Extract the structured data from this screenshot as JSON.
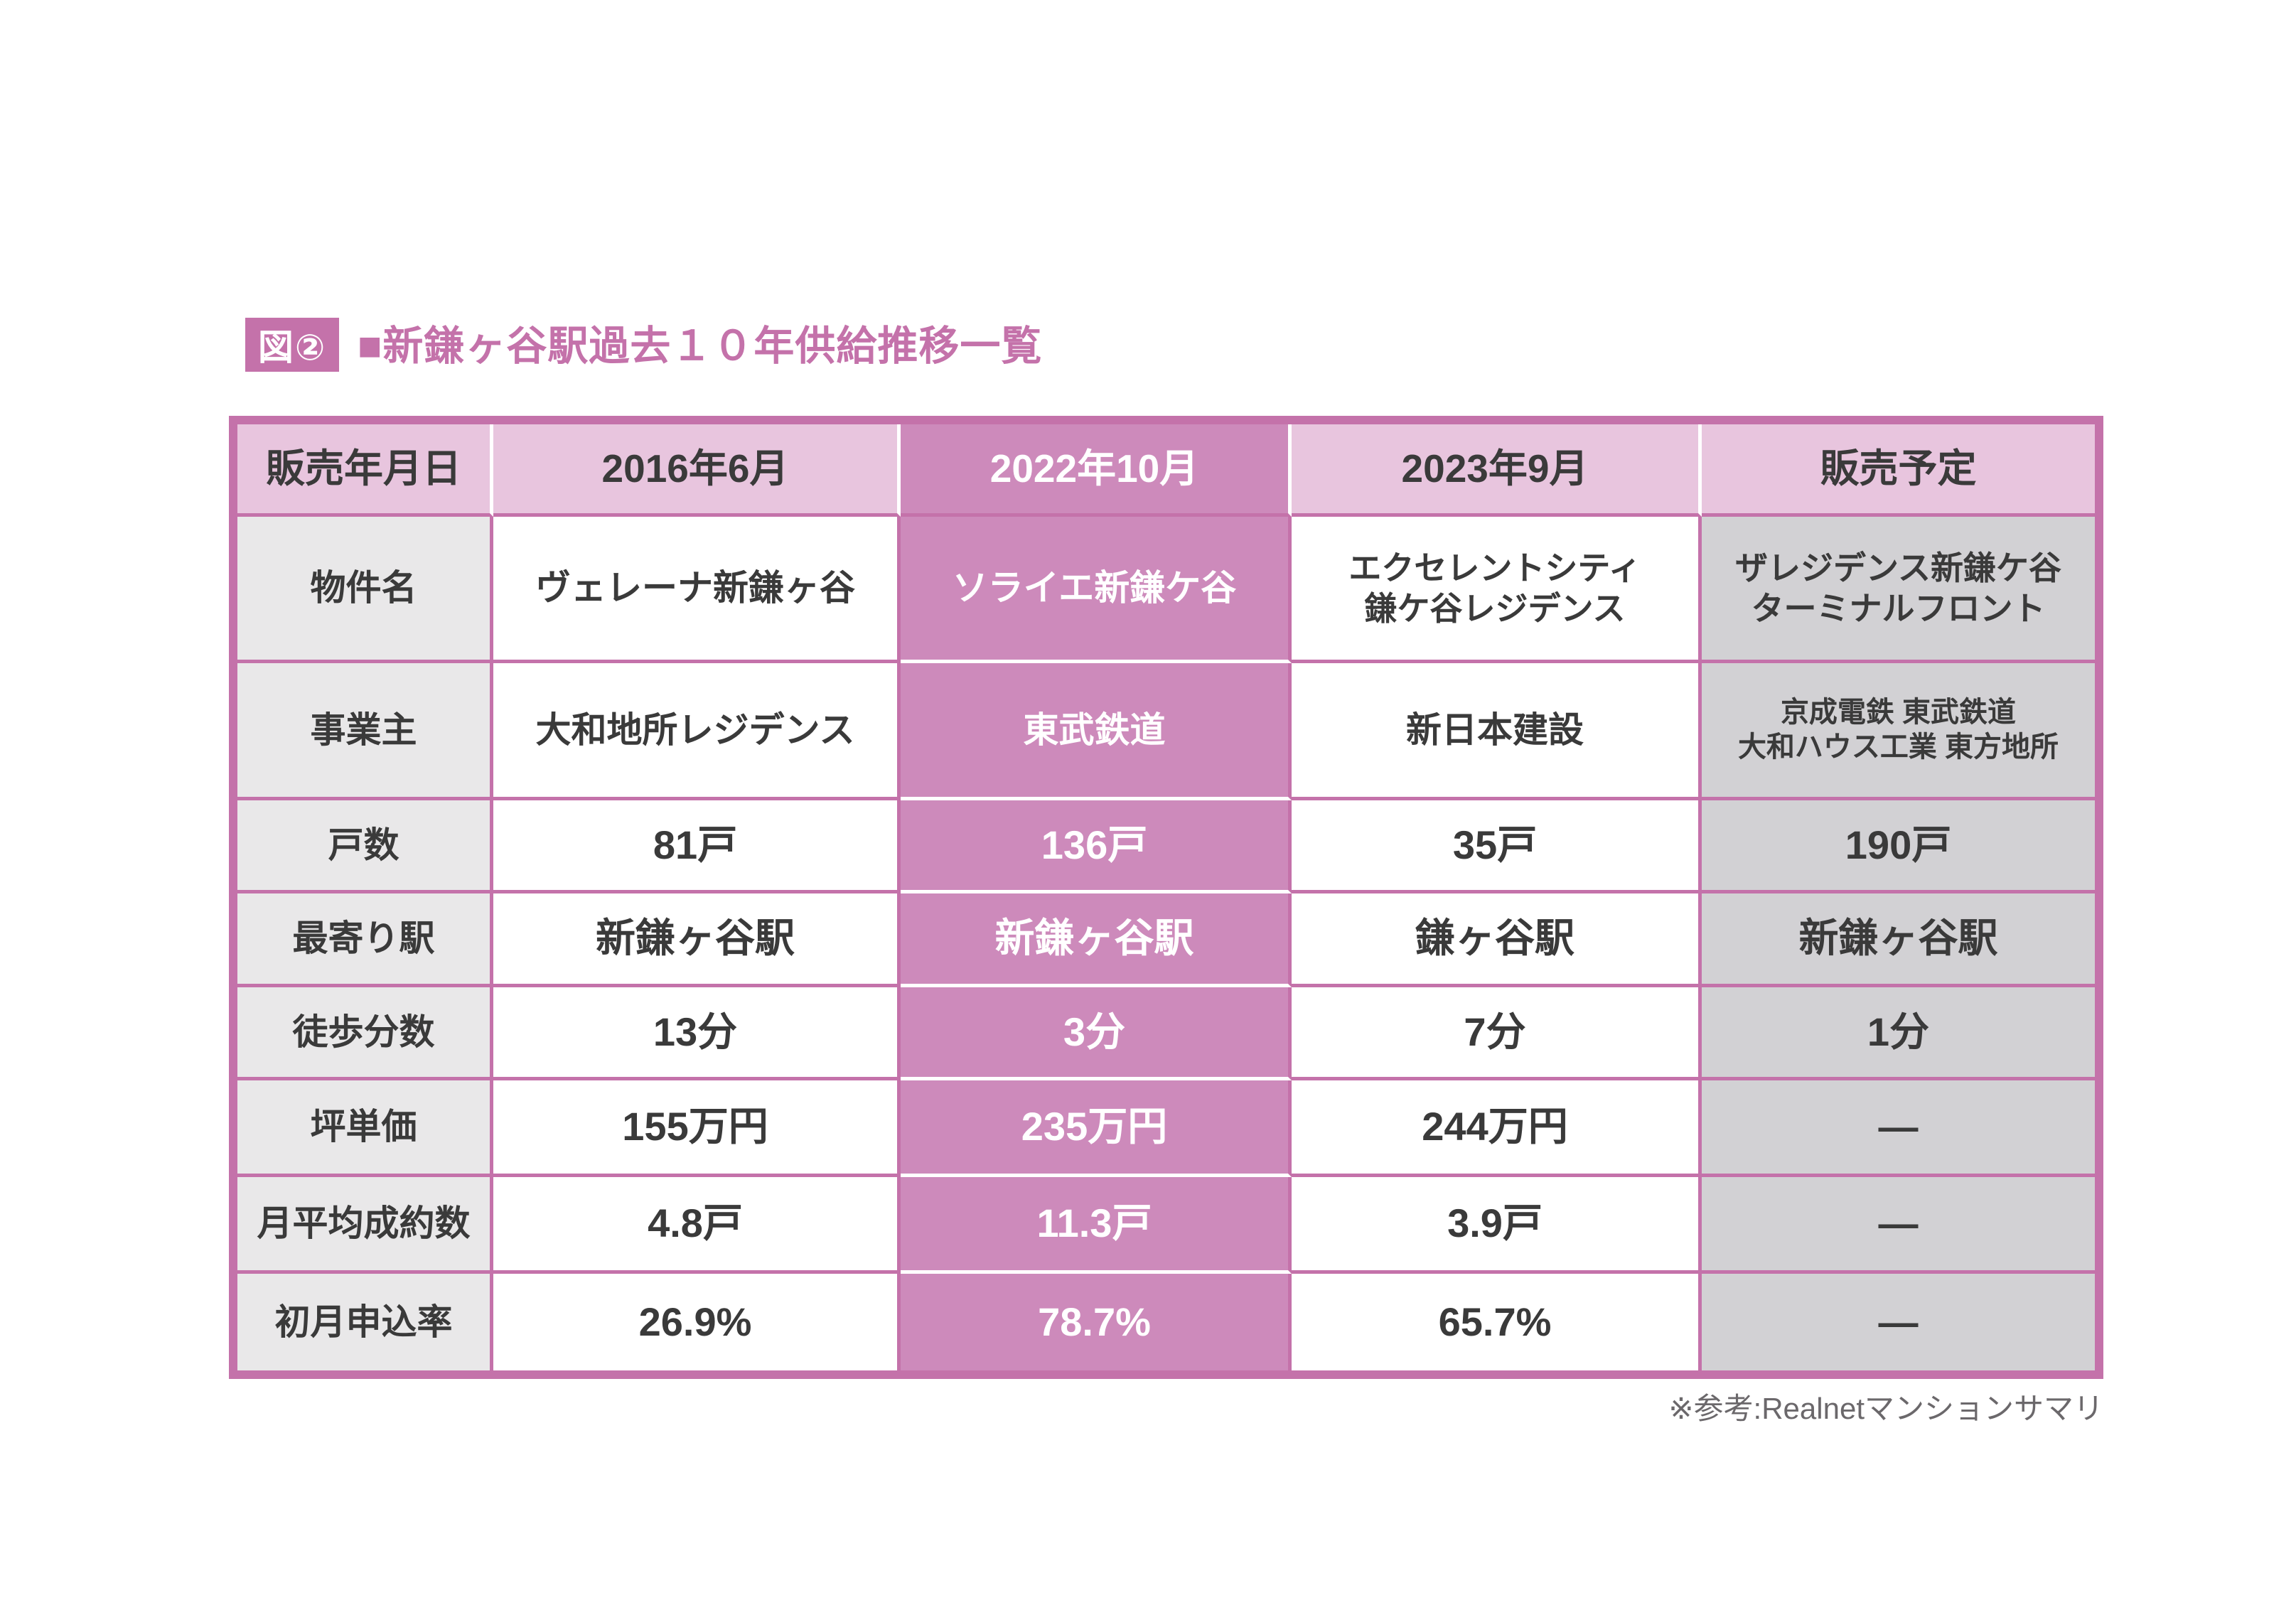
{
  "figure": {
    "badge": "図②",
    "title": "■新鎌ヶ谷駅過去１０年供給推移一覧"
  },
  "footnote": "※参考:Realnetマンションサマリ",
  "colors": {
    "accent": "#c472aa",
    "dark_pink_column": "#cd8abb",
    "light_pink_header": "#e8c5de",
    "label_gray": "#e9e8e9",
    "plan_column_gray": "#d2d1d4",
    "text_dark": "#3a3a3a",
    "text_on_pink": "#ffffff",
    "footnote_gray": "#6b686b"
  },
  "table": {
    "header": {
      "label": "販売年月日",
      "columns": [
        "2016年6月",
        "2022年10月",
        "2023年9月",
        "販売予定"
      ]
    },
    "rows": [
      {
        "label": "物件名",
        "values": [
          [
            "ヴェレーナ新鎌ヶ谷"
          ],
          [
            "ソライエ新鎌ケ谷"
          ],
          [
            "エクセレントシティ",
            "鎌ケ谷レジデンス"
          ],
          [
            "ザレジデンス新鎌ケ谷",
            "ターミナルフロント"
          ]
        ]
      },
      {
        "label": "事業主",
        "values": [
          [
            "大和地所レジデンス"
          ],
          [
            "東武鉄道"
          ],
          [
            "新日本建設"
          ],
          [
            "京成電鉄 東武鉄道",
            "大和ハウス工業 東方地所"
          ]
        ]
      },
      {
        "label": "戸数",
        "values": [
          [
            "81戸"
          ],
          [
            "136戸"
          ],
          [
            "35戸"
          ],
          [
            "190戸"
          ]
        ]
      },
      {
        "label": "最寄り駅",
        "values": [
          [
            "新鎌ヶ谷駅"
          ],
          [
            "新鎌ヶ谷駅"
          ],
          [
            "鎌ヶ谷駅"
          ],
          [
            "新鎌ヶ谷駅"
          ]
        ]
      },
      {
        "label": "徒歩分数",
        "values": [
          [
            "13分"
          ],
          [
            "3分"
          ],
          [
            "7分"
          ],
          [
            "1分"
          ]
        ]
      },
      {
        "label": "坪単価",
        "values": [
          [
            "155万円"
          ],
          [
            "235万円"
          ],
          [
            "244万円"
          ],
          [
            "―"
          ]
        ]
      },
      {
        "label": "月平均成約数",
        "values": [
          [
            "4.8戸"
          ],
          [
            "11.3戸"
          ],
          [
            "3.9戸"
          ],
          [
            "―"
          ]
        ]
      },
      {
        "label": "初月申込率",
        "values": [
          [
            "26.9%"
          ],
          [
            "78.7%"
          ],
          [
            "65.7%"
          ],
          [
            "―"
          ]
        ]
      }
    ]
  },
  "chart_data": {
    "type": "table",
    "title": "新鎌ヶ谷駅過去１０年供給推移一覧",
    "row_header": "販売年月日",
    "columns": [
      "2016年6月",
      "2022年10月",
      "2023年9月",
      "販売予定"
    ],
    "rows": [
      {
        "label": "物件名",
        "values": [
          "ヴェレーナ新鎌ヶ谷",
          "ソライエ新鎌ケ谷",
          "エクセレントシティ鎌ケ谷レジデンス",
          "ザレジデンス新鎌ケ谷ターミナルフロント"
        ]
      },
      {
        "label": "事業主",
        "values": [
          "大和地所レジデンス",
          "東武鉄道",
          "新日本建設",
          "京成電鉄 東武鉄道 大和ハウス工業 東方地所"
        ]
      },
      {
        "label": "戸数",
        "values": [
          "81戸",
          "136戸",
          "35戸",
          "190戸"
        ]
      },
      {
        "label": "最寄り駅",
        "values": [
          "新鎌ヶ谷駅",
          "新鎌ヶ谷駅",
          "鎌ヶ谷駅",
          "新鎌ヶ谷駅"
        ]
      },
      {
        "label": "徒歩分数",
        "values": [
          "13分",
          "3分",
          "7分",
          "1分"
        ]
      },
      {
        "label": "坪単価",
        "values": [
          "155万円",
          "235万円",
          "244万円",
          "―"
        ]
      },
      {
        "label": "月平均成約数",
        "values": [
          "4.8戸",
          "11.3戸",
          "3.9戸",
          "―"
        ]
      },
      {
        "label": "初月申込率",
        "values": [
          "26.9%",
          "78.7%",
          "65.7%",
          "―"
        ]
      }
    ],
    "highlighted_column": "2022年10月",
    "source_note": "※参考:Realnetマンションサマリ"
  }
}
